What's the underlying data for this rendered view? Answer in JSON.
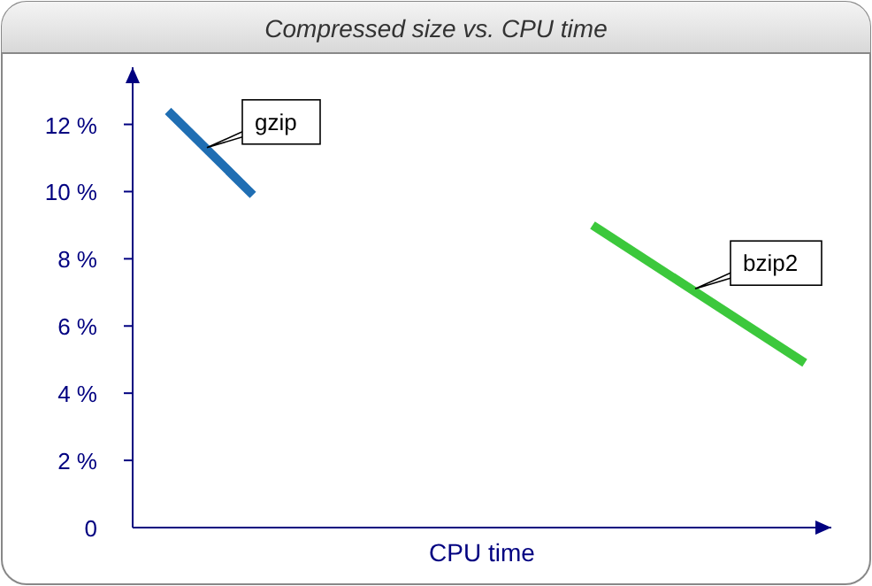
{
  "chart_data": {
    "type": "line",
    "title": "Compressed size vs. CPU time",
    "xlabel": "CPU time",
    "categories": [
      null,
      null,
      null,
      null,
      null,
      null,
      null,
      null,
      null,
      null,
      null,
      null,
      null,
      null,
      null,
      null
    ],
    "series": [
      {
        "name": "gzip",
        "color": "#1f6eb3",
        "values": [
          12.4,
          null,
          9.9,
          null,
          null,
          null,
          null,
          null,
          null,
          null,
          null,
          null,
          null,
          null,
          null,
          null
        ]
      },
      {
        "name": "bzip2",
        "color": "#3cc83c",
        "values": [
          null,
          null,
          null,
          null,
          null,
          null,
          null,
          null,
          null,
          null,
          9.0,
          null,
          null,
          null,
          null,
          4.9
        ]
      }
    ],
    "ylim": [
      0,
      13.7
    ],
    "yticks": [
      {
        "value": 0,
        "label": "0"
      },
      {
        "value": 2,
        "label": "2 %"
      },
      {
        "value": 4,
        "label": "4 %"
      },
      {
        "value": 6,
        "label": "6 %"
      },
      {
        "value": 8,
        "label": "8 %"
      },
      {
        "value": 10,
        "label": "10 %"
      },
      {
        "value": 12,
        "label": "12 %"
      }
    ],
    "grid": false,
    "legend": false,
    "marker": "none",
    "line_style": "solid"
  }
}
